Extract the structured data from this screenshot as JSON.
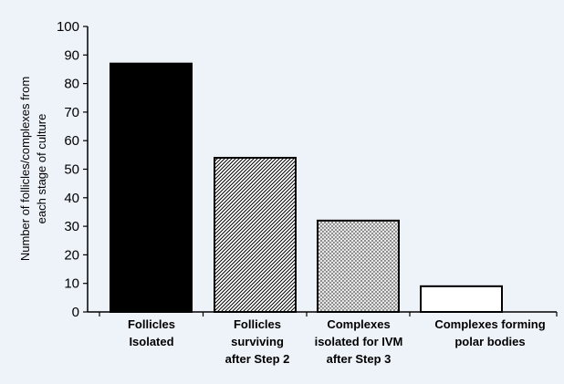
{
  "chart_data": {
    "type": "bar",
    "title": "",
    "xlabel": "",
    "ylabel_lines": [
      "Number  of follicles/complexes from",
      "each stage of culture"
    ],
    "ylim": [
      0,
      100
    ],
    "yticks": [
      0,
      10,
      20,
      30,
      40,
      50,
      60,
      70,
      80,
      90,
      100
    ],
    "grid": false,
    "categories": [
      [
        "Follicles",
        "Isolated"
      ],
      [
        "Follicles",
        "surviving",
        "after Step 2"
      ],
      [
        "Complexes",
        "isolated for IVM",
        "after Step 3"
      ],
      [
        "Complexes forming",
        "polar bodies"
      ]
    ],
    "values": [
      87,
      54,
      32,
      9
    ],
    "bar_styles": [
      "solid-black",
      "diagonal-hatch",
      "crosshatch",
      "white"
    ]
  }
}
